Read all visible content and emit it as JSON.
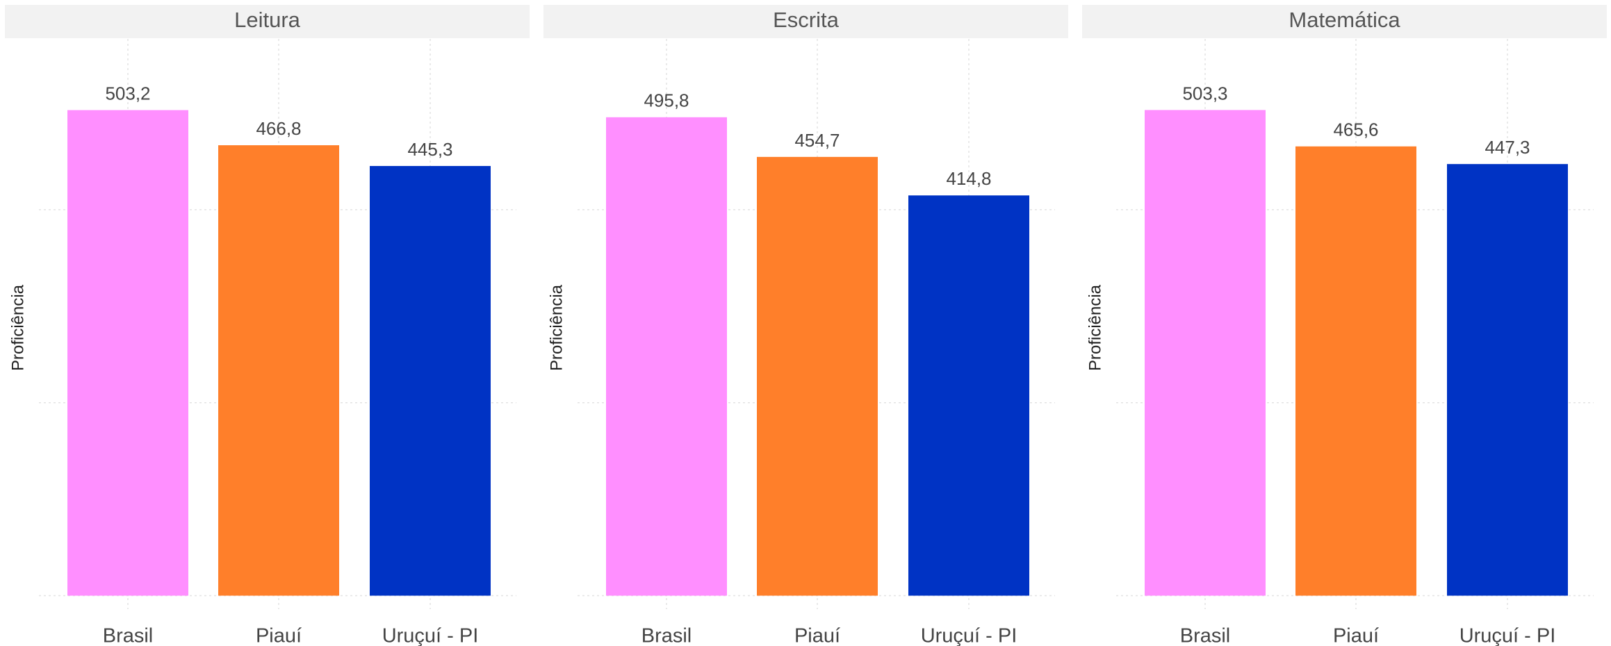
{
  "chart_data": [
    {
      "type": "bar",
      "title": "Leitura",
      "ylabel": "Proficiência",
      "categories": [
        "Brasil",
        "Piauí",
        "Uruçuí - PI"
      ],
      "values": [
        503.2,
        466.8,
        445.3
      ],
      "value_labels": [
        "503,2",
        "466,8",
        "445,3"
      ],
      "colors": [
        "#ff8fff",
        "#ff7f2a",
        "#0033c4"
      ],
      "ylim": [
        -14,
        577
      ],
      "yticks": [
        0,
        200,
        400
      ],
      "grid": true
    },
    {
      "type": "bar",
      "title": "Escrita",
      "ylabel": "Proficiência",
      "categories": [
        "Brasil",
        "Piauí",
        "Uruçuí - PI"
      ],
      "values": [
        495.8,
        454.7,
        414.8
      ],
      "value_labels": [
        "495,8",
        "454,7",
        "414,8"
      ],
      "colors": [
        "#ff8fff",
        "#ff7f2a",
        "#0033c4"
      ],
      "ylim": [
        -14,
        577
      ],
      "yticks": [
        0,
        200,
        400
      ],
      "grid": true
    },
    {
      "type": "bar",
      "title": "Matemática",
      "ylabel": "Proficiência",
      "categories": [
        "Brasil",
        "Piauí",
        "Uruçuí - PI"
      ],
      "values": [
        503.3,
        465.6,
        447.3
      ],
      "value_labels": [
        "503,3",
        "465,6",
        "447,3"
      ],
      "colors": [
        "#ff8fff",
        "#ff7f2a",
        "#0033c4"
      ],
      "ylim": [
        -14,
        577
      ],
      "yticks": [
        0,
        200,
        400
      ],
      "grid": true
    }
  ]
}
